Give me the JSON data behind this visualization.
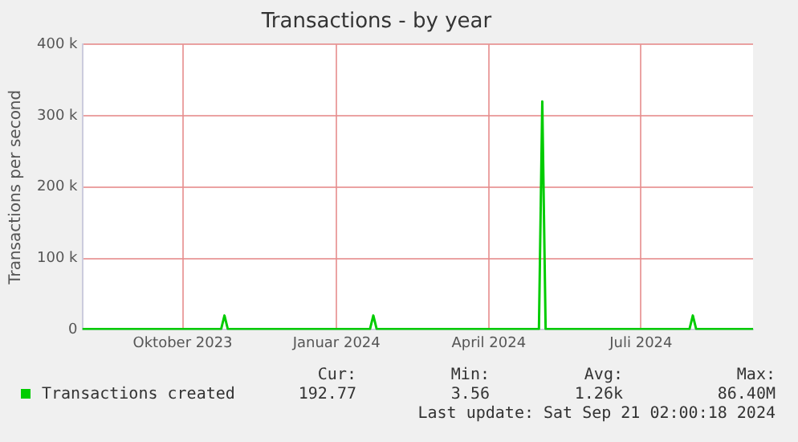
{
  "chart_data": {
    "type": "line",
    "title": "Transactions - by year",
    "ylabel": "Transactions per second",
    "x": [
      "2023-08-17",
      "2023-09-15",
      "2023-10-20",
      "2023-11-08",
      "2023-11-10",
      "2023-11-12",
      "2023-12-20",
      "2024-02-05",
      "2024-02-07",
      "2024-02-09",
      "2024-03-20",
      "2024-05-16",
      "2024-05-18",
      "2024-05-20",
      "2024-06-20",
      "2024-08-14",
      "2024-08-16",
      "2024-08-18",
      "2024-09-21"
    ],
    "series": [
      {
        "name": "Transactions created",
        "color": "#00cc00",
        "values": [
          1000,
          1000,
          1000,
          1000,
          20000,
          1000,
          1000,
          1000,
          20000,
          1000,
          1000,
          1000,
          320000,
          1000,
          1000,
          1000,
          20000,
          1000,
          1000
        ]
      }
    ],
    "xlim": [
      "2023-08-17",
      "2024-09-21"
    ],
    "xticks": [
      {
        "value": "2023-10-16",
        "label": "Oktober 2023"
      },
      {
        "value": "2024-01-16",
        "label": "Januar 2024"
      },
      {
        "value": "2024-04-16",
        "label": "April 2024"
      },
      {
        "value": "2024-07-16",
        "label": "Juli 2024"
      }
    ],
    "ylim": [
      0,
      400000
    ],
    "yticks": [
      0,
      {
        "value": 100000,
        "label": "100 k"
      },
      {
        "value": 200000,
        "label": "200 k"
      },
      {
        "value": 300000,
        "label": "300 k"
      },
      {
        "value": 400000,
        "label": "400 k"
      }
    ],
    "grid": true,
    "legend": "bottom",
    "marker": "none",
    "line_style": "solid",
    "annotations": [
      "Cur:",
      "Min:",
      "Avg:",
      "Max:",
      "192.77",
      "3.56",
      "1.26k",
      "86.40M",
      "Last update: Sat Sep 21 02:00:18 2024"
    ]
  }
}
